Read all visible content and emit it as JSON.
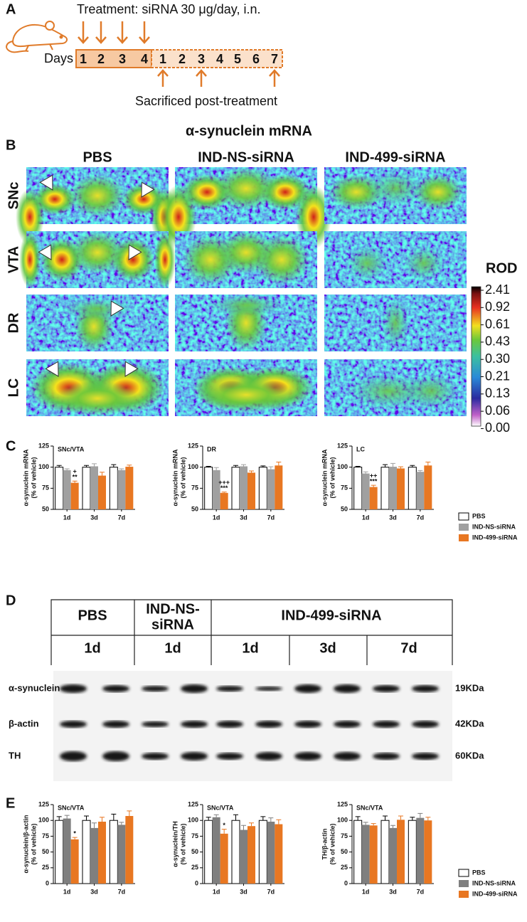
{
  "panel_a": {
    "label": "A",
    "treatment": "Treatment: siRNA 30 μg/day, i.n.",
    "days_label": "Days",
    "treatment_days": [
      1,
      2,
      3,
      4
    ],
    "post_days": [
      1,
      2,
      3,
      4,
      5,
      6,
      7
    ],
    "sacrificed": "Sacrificed post-treatment"
  },
  "panel_b": {
    "label": "B",
    "title": "α-synuclein mRNA",
    "columns": [
      "PBS",
      "IND-NS-siRNA",
      "IND-499-siRNA"
    ],
    "rows": [
      "SNc",
      "VTA",
      "DR",
      "LC"
    ],
    "colorbar_title": "ROD",
    "colorbar_ticks": [
      2.41,
      0.92,
      0.61,
      0.43,
      {
        "value": 0.3,
        "label": "0.30"
      },
      0.21,
      0.13,
      0.06,
      {
        "value": 0,
        "label": "0.00"
      }
    ]
  },
  "panel_c": {
    "label": "C"
  },
  "panel_d": {
    "label": "D",
    "groups": [
      [
        "PBS"
      ],
      [
        "IND-NS-",
        "siRNA"
      ],
      [
        "IND-499-siRNA"
      ]
    ],
    "times": [
      "1d",
      "1d",
      "1d",
      "3d",
      "7d"
    ],
    "rows": [
      {
        "protein": "α-synuclein",
        "size": "19KDa"
      },
      {
        "protein": "β-actin",
        "size": "42KDa"
      },
      {
        "protein": "TH",
        "size": "60KDa"
      }
    ]
  },
  "panel_e": {
    "label": "E"
  },
  "chart_data": [
    {
      "type": "bar",
      "title": "SNc/VTA",
      "y_label": [
        "α-synuclein mRNA",
        "(% of vehicle)"
      ],
      "categories": [
        "1d",
        "3d",
        "7d"
      ],
      "ylim": [
        50,
        125
      ],
      "yticks": [
        50,
        75,
        100,
        125
      ],
      "series": [
        {
          "color": "#ffffff",
          "values": [
            100,
            100,
            100
          ],
          "errors": [
            2,
            2,
            3
          ]
        },
        {
          "color": "#a0a0a0",
          "values": [
            96.5,
            101,
            96.5
          ],
          "errors": [
            1.5,
            3,
            1.5
          ]
        },
        {
          "color": "#e87722",
          "values": [
            81.5,
            90,
            100.5
          ],
          "errors": [
            2,
            4,
            2
          ]
        }
      ],
      "annotations": [
        [
          "+",
          "**"
        ],
        [],
        []
      ]
    },
    {
      "type": "bar",
      "title": "DR",
      "y_label": [
        "α-synuclein mRNA",
        "(% of vehicle)"
      ],
      "categories": [
        "1d",
        "3d",
        "7d"
      ],
      "ylim": [
        50,
        125
      ],
      "yticks": [
        50,
        75,
        100,
        125
      ],
      "series": [
        {
          "color": "#ffffff",
          "values": [
            100,
            100,
            100
          ],
          "errors": [
            1,
            2,
            1.5
          ]
        },
        {
          "color": "#a0a0a0",
          "values": [
            96.5,
            101,
            97.5
          ],
          "errors": [
            3,
            2,
            3
          ]
        },
        {
          "color": "#e87722",
          "values": [
            69.5,
            93.5,
            102
          ],
          "errors": [
            1,
            2,
            4
          ]
        }
      ],
      "annotations": [
        [
          "+++",
          "***"
        ],
        [],
        []
      ]
    },
    {
      "type": "bar",
      "title": "LC",
      "y_label": [
        "α-synuclein mRNA",
        "(% of vehicle)"
      ],
      "categories": [
        "1d",
        "3d",
        "7d"
      ],
      "ylim": [
        50,
        125
      ],
      "yticks": [
        50,
        75,
        100,
        125
      ],
      "series": [
        {
          "name": "PBS",
          "color": "#ffffff",
          "values": [
            100,
            100,
            100
          ],
          "errors": [
            1,
            3,
            2
          ]
        },
        {
          "name": "IND-NS-siRNA",
          "color": "#a0a0a0",
          "values": [
            92.5,
            100.5,
            94.5
          ],
          "errors": [
            2,
            4,
            1.5
          ]
        },
        {
          "name": "IND-499-siRNA",
          "color": "#e87722",
          "values": [
            76.5,
            98.5,
            102
          ],
          "errors": [
            2,
            2,
            4
          ]
        }
      ],
      "annotations": [
        [
          "++",
          "***"
        ],
        [],
        []
      ]
    },
    {
      "type": "bar",
      "title": "SNc/VTA",
      "y_label": [
        "α-synuclein/β-actin",
        "(% of vehicle)"
      ],
      "categories": [
        "1d",
        "3d",
        "7d"
      ],
      "ylim": [
        0,
        125
      ],
      "yticks": [
        0,
        25,
        50,
        75,
        100,
        125
      ],
      "series": [
        {
          "color": "#ffffff",
          "values": [
            100,
            100,
            100
          ],
          "errors": [
            6,
            7,
            10
          ]
        },
        {
          "color": "#7f7f7f",
          "values": [
            103,
            88,
            93
          ],
          "errors": [
            5,
            8,
            4
          ]
        },
        {
          "color": "#e87722",
          "values": [
            70,
            98,
            107
          ],
          "errors": [
            3,
            7,
            8
          ]
        }
      ],
      "annotations": [
        [
          "*"
        ],
        [],
        []
      ]
    },
    {
      "type": "bar",
      "title": "SNc/VTA",
      "y_label": [
        "α-synuclein/TH",
        "(% of vehicle)"
      ],
      "categories": [
        "1d",
        "3d",
        "7d"
      ],
      "ylim": [
        0,
        125
      ],
      "yticks": [
        0,
        25,
        50,
        75,
        100,
        125
      ],
      "series": [
        {
          "color": "#ffffff",
          "values": [
            100,
            100,
            100
          ],
          "errors": [
            5,
            9,
            6
          ]
        },
        {
          "color": "#7f7f7f",
          "values": [
            105,
            85,
            98
          ],
          "errors": [
            4,
            7,
            6
          ]
        },
        {
          "color": "#e87722",
          "values": [
            79,
            91,
            94
          ],
          "errors": [
            7,
            5,
            7
          ]
        }
      ],
      "annotations": [
        [
          "*"
        ],
        [],
        []
      ]
    },
    {
      "type": "bar",
      "title": "SNc/VTA",
      "y_label": [
        "TH/β-actin",
        "(% of vehicle)"
      ],
      "categories": [
        "1d",
        "3d",
        "7d"
      ],
      "ylim": [
        0,
        125
      ],
      "yticks": [
        0,
        25,
        50,
        75,
        100,
        125
      ],
      "series": [
        {
          "name": "PBS",
          "color": "#ffffff",
          "values": [
            100,
            100,
            100
          ],
          "errors": [
            6,
            7,
            5
          ]
        },
        {
          "name": "IND-NS-siRNA",
          "color": "#7f7f7f",
          "values": [
            93,
            88,
            104
          ],
          "errors": [
            4,
            4,
            7
          ]
        },
        {
          "name": "IND-499-siRNA",
          "color": "#e87722",
          "values": [
            92,
            101,
            100
          ],
          "errors": [
            3,
            6,
            5
          ]
        }
      ]
    }
  ]
}
